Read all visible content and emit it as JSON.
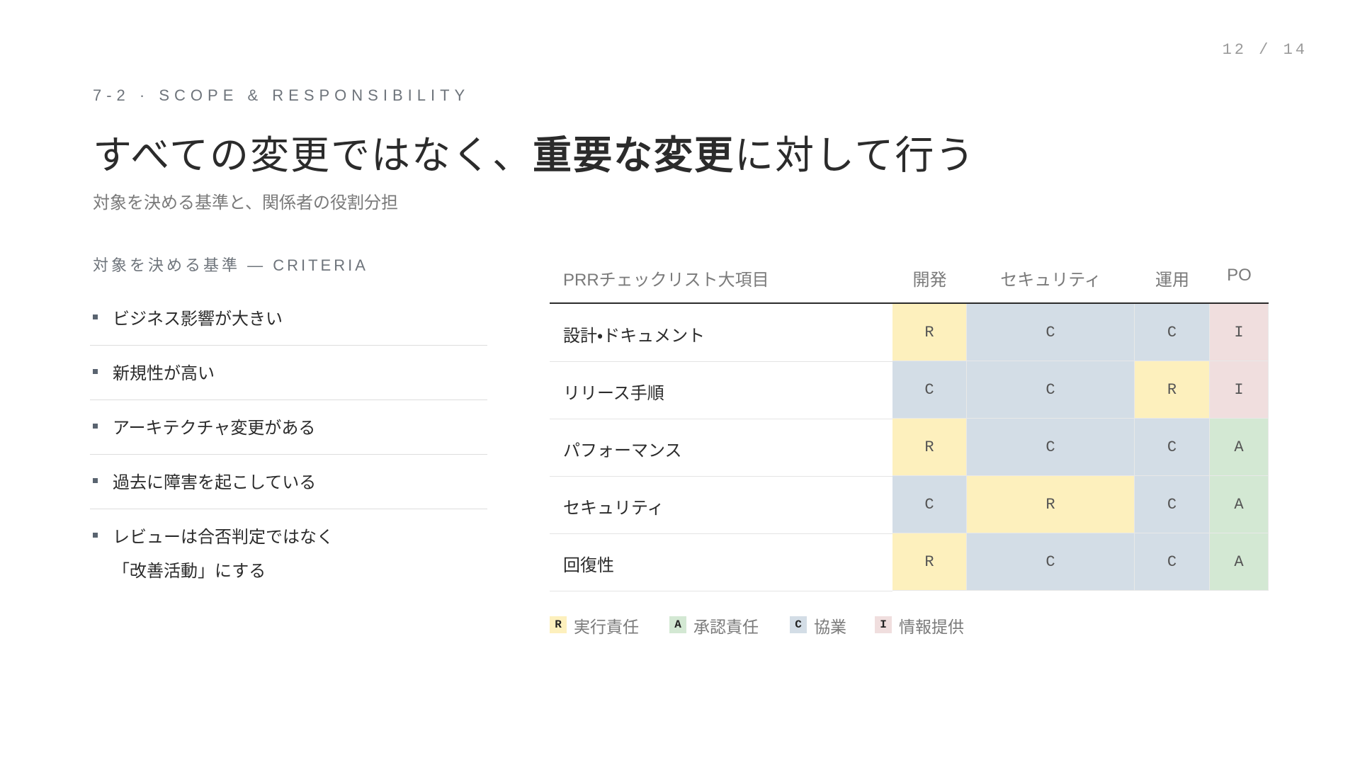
{
  "header": {
    "page": "12 / 14",
    "eyebrow": "7-2 · SCOPE & RESPONSIBILITY",
    "title": {
      "before": "すべての変更ではなく、",
      "emphasis": "重要な変更",
      "after": "に対して行う"
    },
    "subtitle": "対象を決める基準と、関係者の役割分担"
  },
  "criteria": {
    "heading": "対象を決める基準 — CRITERIA",
    "items": [
      [
        "ビジネス影響が大きい"
      ],
      [
        "新規性が高い"
      ],
      [
        "アーキテクチャ変更がある"
      ],
      [
        "過去に障害を起こしている"
      ],
      [
        "レビューは合否判定ではなく",
        "「改善活動」にする"
      ]
    ]
  },
  "table": {
    "columns": [
      "PRRチェックリスト大項目",
      "開発",
      "セキュリティ",
      "運用",
      "PO"
    ],
    "rows": [
      {
        "label": "設計・ドキュメント",
        "cells": [
          "R",
          "C",
          "C",
          "I"
        ]
      },
      {
        "label": "リリース手順",
        "cells": [
          "C",
          "C",
          "R",
          "I"
        ]
      },
      {
        "label": "パフォーマンス",
        "cells": [
          "R",
          "C",
          "C",
          "A"
        ]
      },
      {
        "label": "セキュリティ",
        "cells": [
          "C",
          "R",
          "C",
          "A"
        ]
      },
      {
        "label": "回復性",
        "cells": [
          "R",
          "C",
          "C",
          "A"
        ]
      }
    ]
  },
  "legend": [
    {
      "code": "R",
      "label": "実行責任",
      "color": "#fdf0bd"
    },
    {
      "code": "A",
      "label": "承認責任",
      "color": "#d3e8d3"
    },
    {
      "code": "C",
      "label": "協業",
      "color": "#d3dde6"
    },
    {
      "code": "I",
      "label": "情報提供",
      "color": "#f0dede"
    }
  ]
}
